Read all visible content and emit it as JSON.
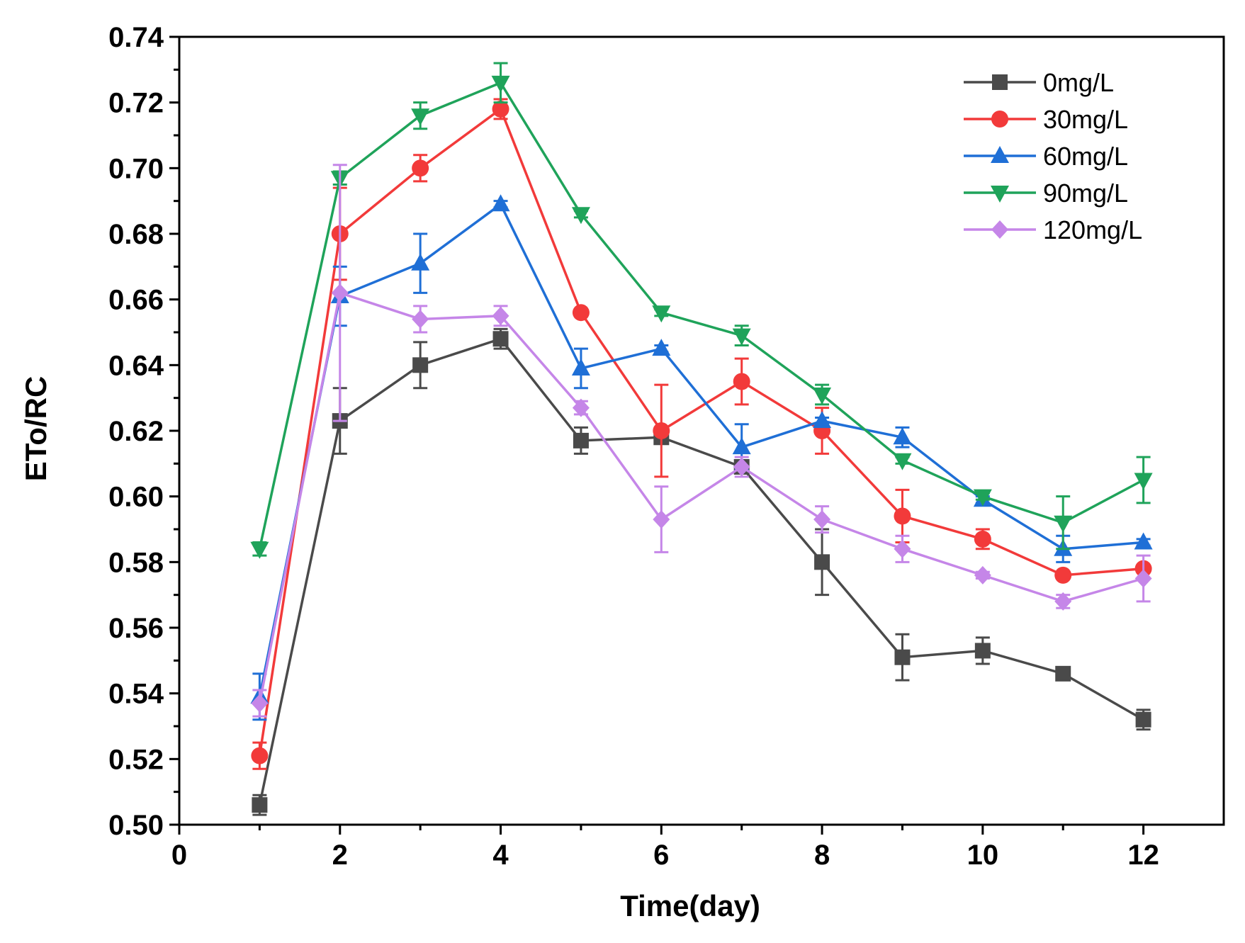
{
  "chart_data": {
    "type": "line",
    "title": "",
    "xlabel": "Time(day)",
    "ylabel": "ETo/RC",
    "xlim": [
      0,
      13
    ],
    "ylim": [
      0.5,
      0.74
    ],
    "x_ticks": [
      0,
      2,
      4,
      6,
      8,
      10,
      12
    ],
    "y_ticks": [
      0.5,
      0.52,
      0.54,
      0.56,
      0.58,
      0.6,
      0.62,
      0.64,
      0.66,
      0.68,
      0.7,
      0.72,
      0.74
    ],
    "grid": false,
    "legend_position": "top-right",
    "x": [
      1,
      2,
      3,
      4,
      5,
      6,
      7,
      8,
      9,
      10,
      11,
      12
    ],
    "series": [
      {
        "name": "0mg/L",
        "color": "#4a4a4a",
        "marker": "square",
        "values": [
          0.506,
          0.623,
          0.64,
          0.648,
          0.617,
          0.618,
          0.609,
          0.58,
          0.551,
          0.553,
          0.546,
          0.532
        ],
        "errors": [
          0.003,
          0.01,
          0.007,
          0.003,
          0.004,
          0.002,
          0.002,
          0.01,
          0.007,
          0.004,
          0.001,
          0.003
        ]
      },
      {
        "name": "30mg/L",
        "color": "#f23a3a",
        "marker": "circle",
        "values": [
          0.521,
          0.68,
          0.7,
          0.718,
          0.656,
          0.62,
          0.635,
          0.62,
          0.594,
          0.587,
          0.576,
          0.578
        ],
        "errors": [
          0.004,
          0.014,
          0.004,
          0.003,
          0.001,
          0.014,
          0.007,
          0.007,
          0.008,
          0.003,
          0.001,
          0.001
        ]
      },
      {
        "name": "60mg/L",
        "color": "#1f6fd6",
        "marker": "triangle-up",
        "values": [
          0.539,
          0.661,
          0.671,
          0.689,
          0.639,
          0.645,
          0.615,
          0.623,
          0.618,
          0.599,
          0.584,
          0.586
        ],
        "errors": [
          0.007,
          0.009,
          0.009,
          0.001,
          0.006,
          0.001,
          0.007,
          0.001,
          0.003,
          0.001,
          0.004,
          0.001
        ]
      },
      {
        "name": "90mg/L",
        "color": "#1fa35a",
        "marker": "triangle-down",
        "values": [
          0.584,
          0.697,
          0.716,
          0.726,
          0.686,
          0.656,
          0.649,
          0.631,
          0.611,
          0.6,
          0.592,
          0.605
        ],
        "errors": [
          0.002,
          0.002,
          0.004,
          0.006,
          0.001,
          0.001,
          0.003,
          0.003,
          0.001,
          0.001,
          0.008,
          0.007
        ]
      },
      {
        "name": "120mg/L",
        "color": "#c586e8",
        "marker": "diamond",
        "values": [
          0.537,
          0.662,
          0.654,
          0.655,
          0.627,
          0.593,
          0.609,
          0.593,
          0.584,
          0.576,
          0.568,
          0.575
        ],
        "errors": [
          0.004,
          0.039,
          0.004,
          0.003,
          0.002,
          0.01,
          0.003,
          0.004,
          0.004,
          0.001,
          0.002,
          0.007
        ]
      }
    ]
  }
}
